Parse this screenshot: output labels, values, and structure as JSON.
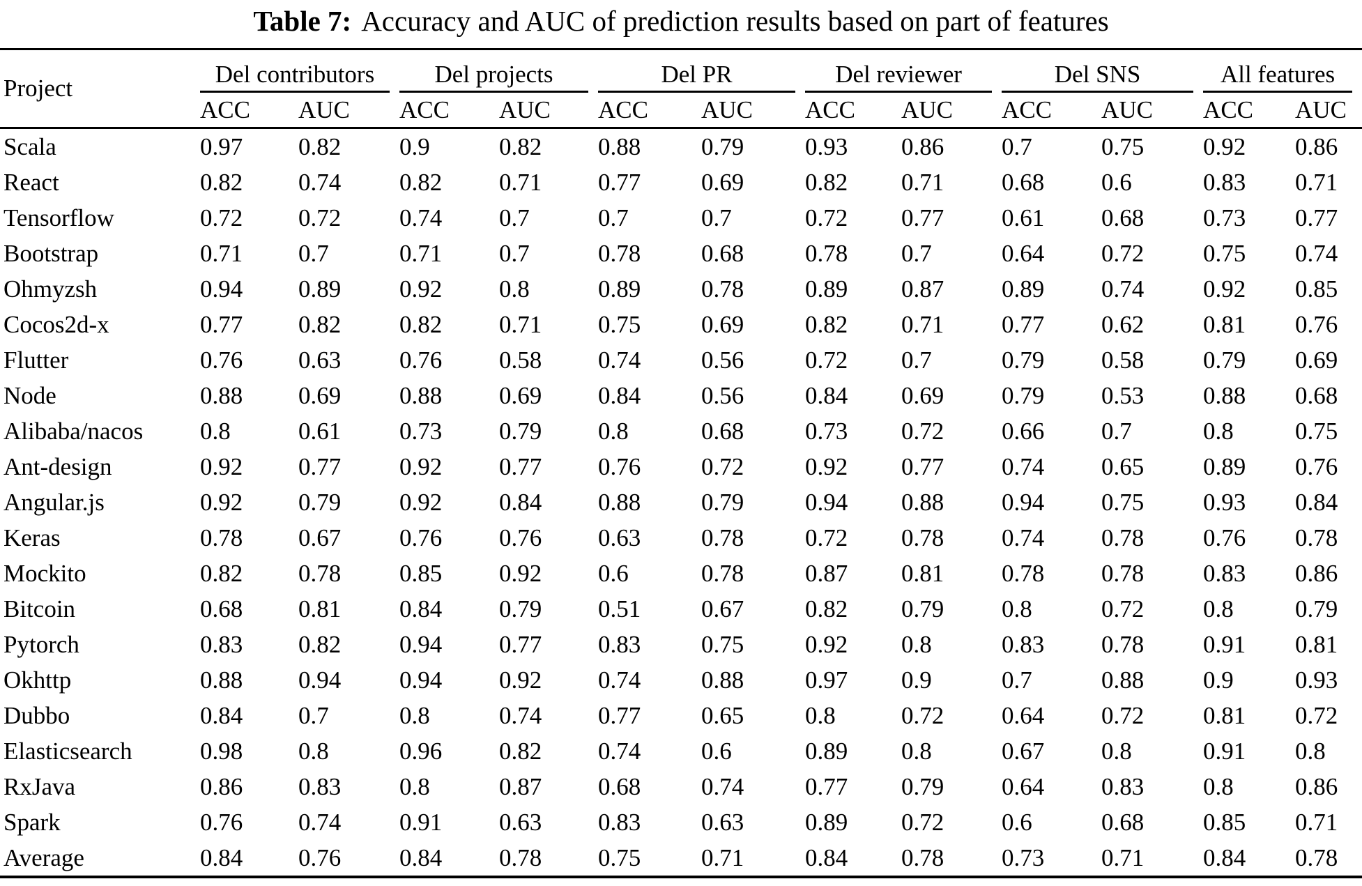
{
  "colors": {
    "background": "#ffffff",
    "text": "#000000",
    "rule": "#000000"
  },
  "caption": {
    "label": "Table 7:",
    "text": "Accuracy and AUC of prediction results based on part of features"
  },
  "table": {
    "project_header": "Project",
    "groups": [
      {
        "label": "Del contributors",
        "sub": [
          "ACC",
          "AUC"
        ]
      },
      {
        "label": "Del projects",
        "sub": [
          "ACC",
          "AUC"
        ]
      },
      {
        "label": "Del PR",
        "sub": [
          "ACC",
          "AUC"
        ]
      },
      {
        "label": "Del reviewer",
        "sub": [
          "ACC",
          "AUC"
        ]
      },
      {
        "label": "Del SNS",
        "sub": [
          "ACC",
          "AUC"
        ]
      },
      {
        "label": "All features",
        "sub": [
          "ACC",
          "AUC"
        ]
      }
    ],
    "rows": [
      {
        "project": "Scala",
        "values": [
          "0.97",
          "0.82",
          "0.9",
          "0.82",
          "0.88",
          "0.79",
          "0.93",
          "0.86",
          "0.7",
          "0.75",
          "0.92",
          "0.86"
        ]
      },
      {
        "project": "React",
        "values": [
          "0.82",
          "0.74",
          "0.82",
          "0.71",
          "0.77",
          "0.69",
          "0.82",
          "0.71",
          "0.68",
          "0.6",
          "0.83",
          "0.71"
        ]
      },
      {
        "project": "Tensorflow",
        "values": [
          "0.72",
          "0.72",
          "0.74",
          "0.7",
          "0.7",
          "0.7",
          "0.72",
          "0.77",
          "0.61",
          "0.68",
          "0.73",
          "0.77"
        ]
      },
      {
        "project": "Bootstrap",
        "values": [
          "0.71",
          "0.7",
          "0.71",
          "0.7",
          "0.78",
          "0.68",
          "0.78",
          "0.7",
          "0.64",
          "0.72",
          "0.75",
          "0.74"
        ]
      },
      {
        "project": "Ohmyzsh",
        "values": [
          "0.94",
          "0.89",
          "0.92",
          "0.8",
          "0.89",
          "0.78",
          "0.89",
          "0.87",
          "0.89",
          "0.74",
          "0.92",
          "0.85"
        ]
      },
      {
        "project": "Cocos2d-x",
        "values": [
          "0.77",
          "0.82",
          "0.82",
          "0.71",
          "0.75",
          "0.69",
          "0.82",
          "0.71",
          "0.77",
          "0.62",
          "0.81",
          "0.76"
        ]
      },
      {
        "project": "Flutter",
        "values": [
          "0.76",
          "0.63",
          "0.76",
          "0.58",
          "0.74",
          "0.56",
          "0.72",
          "0.7",
          "0.79",
          "0.58",
          "0.79",
          "0.69"
        ]
      },
      {
        "project": "Node",
        "values": [
          "0.88",
          "0.69",
          "0.88",
          "0.69",
          "0.84",
          "0.56",
          "0.84",
          "0.69",
          "0.79",
          "0.53",
          "0.88",
          "0.68"
        ]
      },
      {
        "project": "Alibaba/nacos",
        "values": [
          "0.8",
          "0.61",
          "0.73",
          "0.79",
          "0.8",
          "0.68",
          "0.73",
          "0.72",
          "0.66",
          "0.7",
          "0.8",
          "0.75"
        ]
      },
      {
        "project": "Ant-design",
        "values": [
          "0.92",
          "0.77",
          "0.92",
          "0.77",
          "0.76",
          "0.72",
          "0.92",
          "0.77",
          "0.74",
          "0.65",
          "0.89",
          "0.76"
        ]
      },
      {
        "project": "Angular.js",
        "values": [
          "0.92",
          "0.79",
          "0.92",
          "0.84",
          "0.88",
          "0.79",
          "0.94",
          "0.88",
          "0.94",
          "0.75",
          "0.93",
          "0.84"
        ]
      },
      {
        "project": "Keras",
        "values": [
          "0.78",
          "0.67",
          "0.76",
          "0.76",
          "0.63",
          "0.78",
          "0.72",
          "0.78",
          "0.74",
          "0.78",
          "0.76",
          "0.78"
        ]
      },
      {
        "project": "Mockito",
        "values": [
          "0.82",
          "0.78",
          "0.85",
          "0.92",
          "0.6",
          "0.78",
          "0.87",
          "0.81",
          "0.78",
          "0.78",
          "0.83",
          "0.86"
        ]
      },
      {
        "project": "Bitcoin",
        "values": [
          "0.68",
          "0.81",
          "0.84",
          "0.79",
          "0.51",
          "0.67",
          "0.82",
          "0.79",
          "0.8",
          "0.72",
          "0.8",
          "0.79"
        ]
      },
      {
        "project": "Pytorch",
        "values": [
          "0.83",
          "0.82",
          "0.94",
          "0.77",
          "0.83",
          "0.75",
          "0.92",
          "0.8",
          "0.83",
          "0.78",
          "0.91",
          "0.81"
        ]
      },
      {
        "project": "Okhttp",
        "values": [
          "0.88",
          "0.94",
          "0.94",
          "0.92",
          "0.74",
          "0.88",
          "0.97",
          "0.9",
          "0.7",
          "0.88",
          "0.9",
          "0.93"
        ]
      },
      {
        "project": "Dubbo",
        "values": [
          "0.84",
          "0.7",
          "0.8",
          "0.74",
          "0.77",
          "0.65",
          "0.8",
          "0.72",
          "0.64",
          "0.72",
          "0.81",
          "0.72"
        ]
      },
      {
        "project": "Elasticsearch",
        "values": [
          "0.98",
          "0.8",
          "0.96",
          "0.82",
          "0.74",
          "0.6",
          "0.89",
          "0.8",
          "0.67",
          "0.8",
          "0.91",
          "0.8"
        ]
      },
      {
        "project": "RxJava",
        "values": [
          "0.86",
          "0.83",
          "0.8",
          "0.87",
          "0.68",
          "0.74",
          "0.77",
          "0.79",
          "0.64",
          "0.83",
          "0.8",
          "0.86"
        ]
      },
      {
        "project": "Spark",
        "values": [
          "0.76",
          "0.74",
          "0.91",
          "0.63",
          "0.83",
          "0.63",
          "0.89",
          "0.72",
          "0.6",
          "0.68",
          "0.85",
          "0.71"
        ]
      },
      {
        "project": "Average",
        "values": [
          "0.84",
          "0.76",
          "0.84",
          "0.78",
          "0.75",
          "0.71",
          "0.84",
          "0.78",
          "0.73",
          "0.71",
          "0.84",
          "0.78"
        ]
      }
    ]
  }
}
